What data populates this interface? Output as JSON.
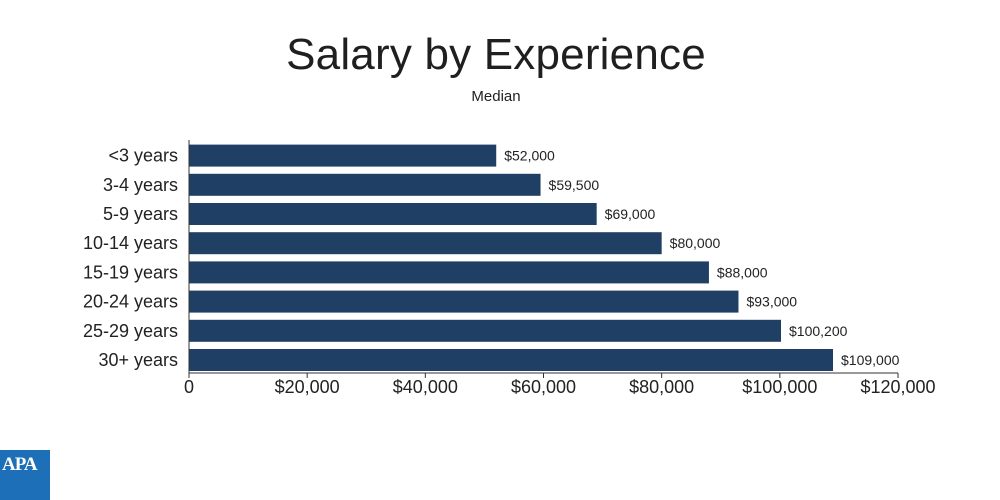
{
  "chart_data": {
    "type": "bar",
    "orientation": "horizontal",
    "title": "Salary by Experience",
    "subtitle": "Median",
    "categories": [
      "<3 years",
      "3-4 years",
      "5-9 years",
      "10-14 years",
      "15-19 years",
      "20-24 years",
      "25-29 years",
      "30+ years"
    ],
    "values": [
      52000,
      59500,
      69000,
      80000,
      88000,
      93000,
      100200,
      109000
    ],
    "value_labels": [
      "$52,000",
      "$59,500",
      "$69,000",
      "$80,000",
      "$88,000",
      "$93,000",
      "$100,200",
      "$109,000"
    ],
    "xlim": [
      0,
      120000
    ],
    "xticks": [
      0,
      20000,
      40000,
      60000,
      80000,
      100000,
      120000
    ],
    "xtick_labels": [
      "0",
      "$20,000",
      "$40,000",
      "$60,000",
      "$80,000",
      "$100,000",
      "$120,000"
    ],
    "bar_color": "#203f64",
    "grid": false
  },
  "logo": {
    "text": "APA",
    "color": "#1d6fb8"
  }
}
